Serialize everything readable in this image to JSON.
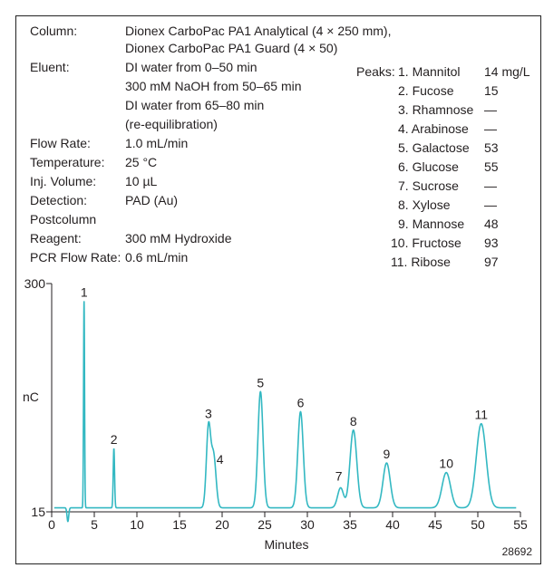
{
  "conditions": {
    "column_label": "Column:",
    "column_value_1": "Dionex CarboPac PA1 Analytical (4 × 250 mm),",
    "column_value_2": "Dionex CarboPac PA1 Guard (4 × 50)",
    "eluent_label": "Eluent:",
    "eluent_value_1": "DI water from 0–50 min",
    "eluent_value_2": "300 mM NaOH from 50–65 min",
    "eluent_value_3": "DI water from 65–80 min",
    "eluent_value_4": "(re-equilibration)",
    "flow_label": "Flow Rate:",
    "flow_value": "1.0 mL/min",
    "temp_label": "Temperature:",
    "temp_value": "25 °C",
    "inj_label": "Inj. Volume:",
    "inj_value": "10 µL",
    "det_label": "Detection:",
    "det_value": "PAD (Au)",
    "postcolumn_label": "Postcolumn",
    "reagent_label": "Reagent:",
    "reagent_value": "300 mM Hydroxide",
    "pcr_label": "PCR Flow Rate:",
    "pcr_value": "0.6 mL/min"
  },
  "peaks_table": {
    "label": "Peaks:",
    "rows": [
      {
        "name": "1. Mannitol",
        "conc": "14 mg/L"
      },
      {
        "name": "2. Fucose",
        "conc": "15"
      },
      {
        "name": "3. Rhamnose",
        "conc": "—"
      },
      {
        "name": "4. Arabinose",
        "conc": "—"
      },
      {
        "name": "5. Galactose",
        "conc": "53"
      },
      {
        "name": "6. Glucose",
        "conc": "55"
      },
      {
        "name": "7. Sucrose",
        "conc": "—"
      },
      {
        "name": "8. Xylose",
        "conc": "—"
      },
      {
        "name": "9. Mannose",
        "conc": "48"
      },
      {
        "name": "10. Fructose",
        "conc": "93"
      },
      {
        "name": "11. Ribose",
        "conc": "97"
      }
    ]
  },
  "figure_id": "28692",
  "colors": {
    "trace": "#33b8c2",
    "axis": "#231f20"
  },
  "chart_data": {
    "type": "line",
    "xlabel": "Minutes",
    "ylabel": "nC",
    "xlim": [
      0,
      55
    ],
    "ylim": [
      15,
      300
    ],
    "xticks": [
      "0",
      "5",
      "10",
      "15",
      "20",
      "25",
      "30",
      "35",
      "40",
      "45",
      "50",
      "55"
    ],
    "yticks": [
      "15",
      "300"
    ],
    "baseline": 20,
    "peaks": [
      {
        "label": "1",
        "rt": 3.8,
        "height": 278,
        "width": 0.06
      },
      {
        "label": "2",
        "rt": 7.3,
        "height": 94,
        "width": 0.08
      },
      {
        "label": "3",
        "rt": 18.4,
        "height": 120,
        "width": 0.25
      },
      {
        "label": "4",
        "rt": 19.0,
        "height": 85,
        "width": 0.28
      },
      {
        "label": "5",
        "rt": 24.5,
        "height": 165,
        "width": 0.3
      },
      {
        "label": "6",
        "rt": 29.2,
        "height": 140,
        "width": 0.32
      },
      {
        "label": "7",
        "rt": 33.9,
        "height": 45,
        "width": 0.35
      },
      {
        "label": "8",
        "rt": 35.4,
        "height": 117,
        "width": 0.4
      },
      {
        "label": "9",
        "rt": 39.3,
        "height": 76,
        "width": 0.42
      },
      {
        "label": "10",
        "rt": 46.3,
        "height": 64,
        "width": 0.5
      },
      {
        "label": "11",
        "rt": 50.4,
        "height": 125,
        "width": 0.58
      }
    ],
    "minor_peaks": [
      {
        "rt": 1.9,
        "height": 3,
        "width": 0.1
      }
    ]
  }
}
